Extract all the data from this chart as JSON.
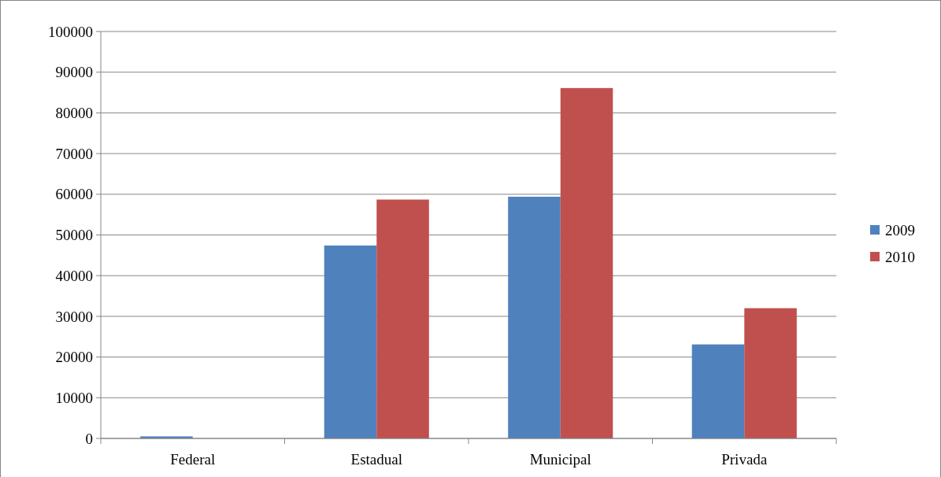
{
  "chart_data": {
    "type": "bar",
    "categories": [
      "Federal",
      "Estadual",
      "Municipal",
      "Privada"
    ],
    "series": [
      {
        "name": "2009",
        "color": "#4f81bd",
        "values": [
          500,
          47400,
          59400,
          23100
        ]
      },
      {
        "name": "2010",
        "color": "#c0504d",
        "values": [
          0,
          58700,
          86100,
          32000
        ]
      }
    ],
    "ylim": [
      0,
      100000
    ],
    "yticks": [
      0,
      10000,
      20000,
      30000,
      40000,
      50000,
      60000,
      70000,
      80000,
      90000,
      100000
    ],
    "grid": "y",
    "legend": "right"
  }
}
